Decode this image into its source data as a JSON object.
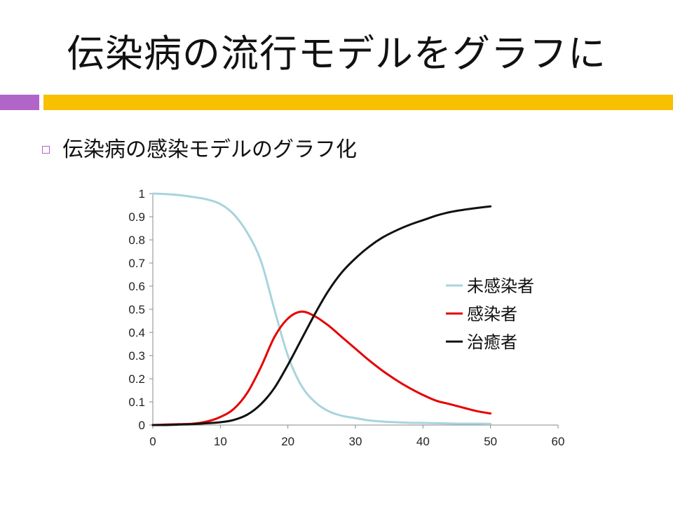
{
  "slide": {
    "title": "伝染病の流行モデルをグラフに",
    "bullet": "伝染病の感染モデルのグラフ化",
    "accent_purple": "#b265c9",
    "accent_gold": "#f8c000"
  },
  "chart_data": {
    "type": "line",
    "title": "",
    "xlabel": "",
    "ylabel": "",
    "xlim": [
      0,
      60
    ],
    "ylim": [
      0,
      1
    ],
    "xticks": [
      "0",
      "10",
      "20",
      "30",
      "40",
      "50",
      "60"
    ],
    "yticks": [
      "0",
      "0.1",
      "0.2",
      "0.3",
      "0.4",
      "0.5",
      "0.6",
      "0.7",
      "0.8",
      "0.9",
      "1"
    ],
    "grid": false,
    "legend_position": "right",
    "x": [
      0,
      2,
      4,
      6,
      8,
      10,
      12,
      14,
      16,
      18,
      20,
      22,
      24,
      26,
      28,
      30,
      32,
      34,
      36,
      38,
      40,
      42,
      44,
      46,
      48,
      50
    ],
    "series": [
      {
        "name": "未感染者",
        "color": "#a8d4dc",
        "values": [
          1.0,
          0.998,
          0.993,
          0.985,
          0.975,
          0.955,
          0.91,
          0.83,
          0.71,
          0.5,
          0.3,
          0.17,
          0.1,
          0.06,
          0.04,
          0.03,
          0.02,
          0.015,
          0.012,
          0.01,
          0.009,
          0.008,
          0.007,
          0.006,
          0.006,
          0.005
        ]
      },
      {
        "name": "感染者",
        "color": "#e60000",
        "values": [
          0.0,
          0.002,
          0.004,
          0.006,
          0.015,
          0.035,
          0.07,
          0.14,
          0.25,
          0.38,
          0.46,
          0.49,
          0.47,
          0.43,
          0.38,
          0.33,
          0.28,
          0.235,
          0.195,
          0.16,
          0.13,
          0.105,
          0.09,
          0.075,
          0.06,
          0.05
        ]
      },
      {
        "name": "治癒者",
        "color": "#111111",
        "values": [
          0.0,
          0.0,
          0.002,
          0.004,
          0.008,
          0.012,
          0.022,
          0.045,
          0.09,
          0.16,
          0.26,
          0.37,
          0.48,
          0.58,
          0.66,
          0.72,
          0.77,
          0.81,
          0.84,
          0.865,
          0.885,
          0.905,
          0.92,
          0.93,
          0.938,
          0.945
        ]
      }
    ]
  }
}
